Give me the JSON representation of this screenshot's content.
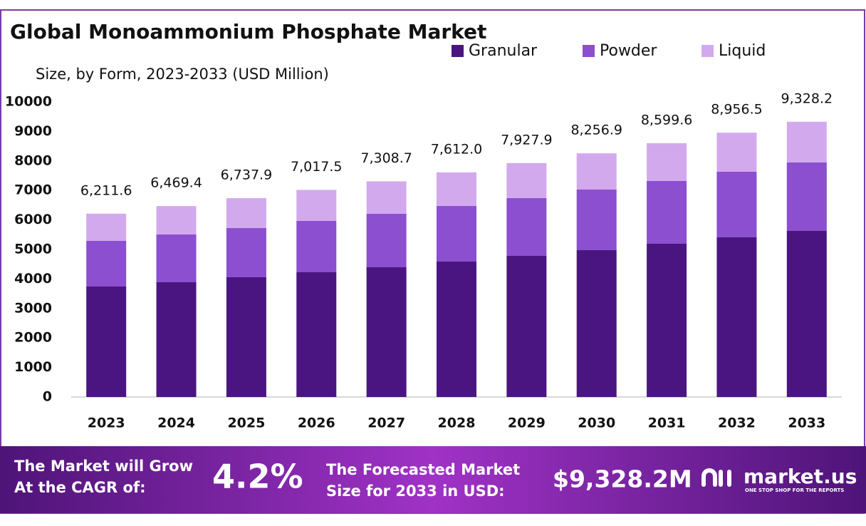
{
  "chart_data": {
    "type": "stacked-bar",
    "title": "Global Monoammonium Phosphate Market",
    "subtitle": "Size, by Form, 2023-2033 (USD Million)",
    "categories": [
      "2023",
      "2024",
      "2025",
      "2026",
      "2027",
      "2028",
      "2029",
      "2030",
      "2031",
      "2032",
      "2033"
    ],
    "series": [
      {
        "name": "Granular",
        "color": "#4a1580",
        "values": [
          3744,
          3889,
          4058,
          4227,
          4396,
          4589,
          4783,
          4976,
          5193,
          5411,
          5628
        ]
      },
      {
        "name": "Powder",
        "color": "#8b4fcf",
        "values": [
          1546,
          1618,
          1667,
          1739,
          1812,
          1884,
          1956,
          2053,
          2126,
          2222,
          2319
        ]
      },
      {
        "name": "Liquid",
        "color": "#d3a9ee",
        "values": [
          922,
          962,
          1013,
          1052,
          1101,
          1139,
          1189,
          1228,
          1281,
          1324,
          1381
        ]
      }
    ],
    "totals": {
      "values": [
        6211.6,
        6469.4,
        6737.9,
        7017.5,
        7308.7,
        7612.0,
        7927.9,
        8256.9,
        8599.6,
        8956.5,
        9328.2
      ],
      "value_labels": [
        "6,211.6",
        "6,469.4",
        "6,737.9",
        "7,017.5",
        "7,308.7",
        "7,612.0",
        "7,927.9",
        "8,256.9",
        "8,599.6",
        "8,956.5",
        "9,328.2"
      ]
    },
    "ylim": [
      0,
      10000
    ],
    "yticks": [
      0,
      1000,
      2000,
      3000,
      4000,
      5000,
      6000,
      7000,
      8000,
      9000,
      10000
    ],
    "grid": false,
    "legend": "top"
  },
  "footer": {
    "cagr_text": [
      "The Market will Grow",
      "At the CAGR of:"
    ],
    "cagr": "4.2%",
    "forecast_text": [
      "The Forecasted Market",
      "Size for 2033 in USD:"
    ],
    "forecast": "$9,328.2M",
    "logo": "market.us",
    "tagline": "ONE STOP SHOP FOR THE REPORTS"
  }
}
